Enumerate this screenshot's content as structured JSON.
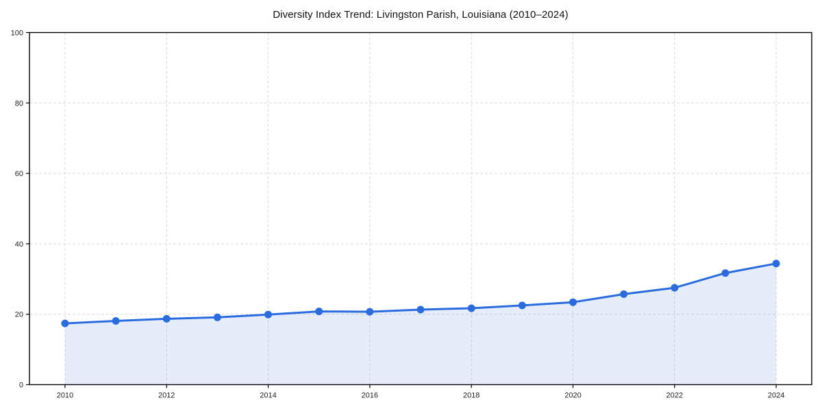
{
  "page": {
    "background_color": "#ffffff"
  },
  "chart_data": {
    "type": "line",
    "title": "Diversity Index Trend: Livingston Parish, Louisiana (2010–2024)",
    "x": [
      2010,
      2011,
      2012,
      2013,
      2014,
      2015,
      2016,
      2017,
      2018,
      2019,
      2020,
      2021,
      2022,
      2023,
      2024
    ],
    "series": [
      {
        "name": "Diversity Index",
        "values": [
          17.4,
          18.1,
          18.7,
          19.1,
          19.9,
          20.8,
          20.7,
          21.3,
          21.7,
          22.5,
          23.4,
          25.7,
          27.5,
          31.7,
          34.4
        ]
      }
    ],
    "xlabel": "",
    "ylabel": "",
    "xlim": [
      2009.3,
      2024.7
    ],
    "ylim": [
      0,
      100
    ],
    "xticks": [
      2010,
      2012,
      2014,
      2016,
      2018,
      2020,
      2022,
      2024
    ],
    "yticks": [
      0,
      20,
      40,
      60,
      80,
      100
    ],
    "grid": true,
    "grid_style": "dashed",
    "legend_position": "none",
    "area_fill": true,
    "markers": true,
    "colors": {
      "line": "#2a6ce0",
      "marker": "#2a6ce0",
      "area_fill": "#2a6ce0",
      "area_fill_opacity": 0.12,
      "grid": "#d9d9d9",
      "axis_border": "#000000",
      "tick_label": "#222222",
      "title": "#111111"
    }
  }
}
